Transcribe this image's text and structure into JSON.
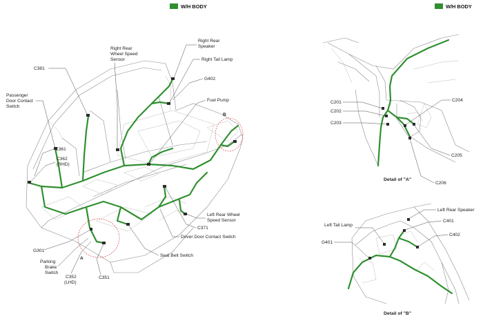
{
  "legend": {
    "label": "W/H BODY",
    "color": "#2f8f2f"
  },
  "main": {
    "labels": {
      "c381": "C381",
      "passenger_door": [
        "Passenger",
        "Door Contact",
        "Switch"
      ],
      "c361": "C361",
      "c362": [
        "C362",
        "(RHD)"
      ],
      "g301": "G301",
      "parking_brake": [
        "Parking",
        "Brake",
        "Switch"
      ],
      "c352": [
        "C352",
        "(LHD)"
      ],
      "c351": "C351",
      "right_rear_wheel": [
        "Right Rear",
        "Wheel Speed",
        "Sensor"
      ],
      "right_rear_speaker": [
        "Right Rear",
        "Speaker"
      ],
      "right_tail_lamp": "Right Tail Lamp",
      "g402": "G402",
      "fuel_pump": "Fuel Pump",
      "left_rear_wheel": [
        "Left Rear Wheel",
        "Speed Sensor"
      ],
      "c371": "C371",
      "driver_door": "Driver Door Contact Switch",
      "seat_belt": "Seat Belt Switch",
      "mark_a": "A",
      "mark_b": "B"
    }
  },
  "detail_a": {
    "title": "Detail of \"A\"",
    "labels": {
      "c201": "C201",
      "c202": "C202",
      "c203": "C203",
      "c204": "C204",
      "c205": "C205",
      "c206": "C206"
    }
  },
  "detail_b": {
    "title": "Detail of \"B\"",
    "labels": {
      "left_tail_lamp": "Left Tail Lamp",
      "g401": "G401",
      "left_rear_speaker": "Left Rear Speaker",
      "c401": "C401",
      "c402": "C402"
    }
  }
}
